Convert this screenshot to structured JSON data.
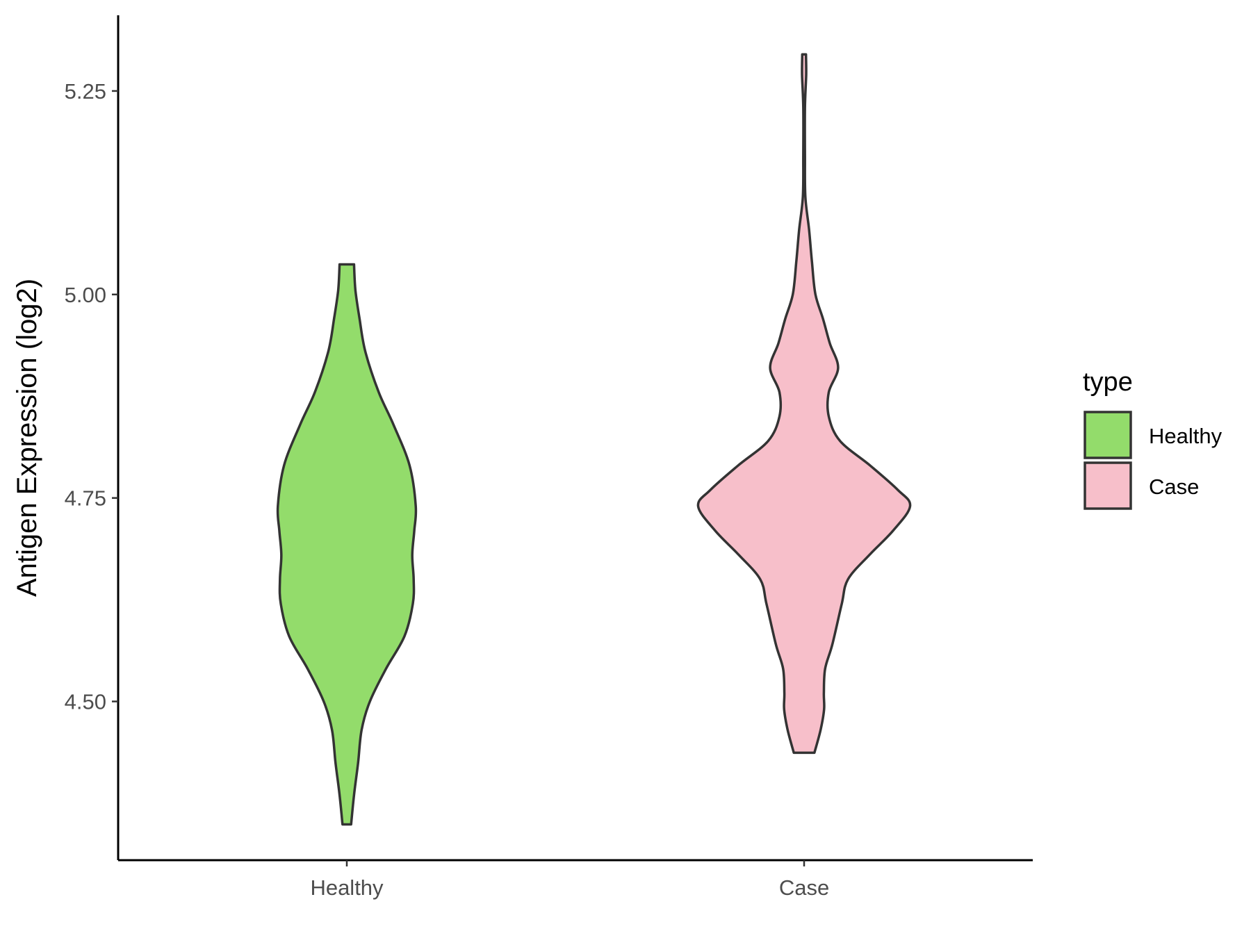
{
  "chart_data": {
    "type": "violin",
    "title": "",
    "xlabel": "",
    "ylabel": "Antigen Expression (log2)",
    "ylim": [
      4.305,
      5.343
    ],
    "yticks": [
      "4.50",
      "4.75",
      "5.00",
      "5.25"
    ],
    "grid": false,
    "categories": [
      "Healthy",
      "Case"
    ],
    "legend": {
      "title": "type",
      "position": "right",
      "entries": [
        "Healthy",
        "Case"
      ]
    },
    "colors": {
      "Healthy": "#93dc6b",
      "Case": "#f7bfca",
      "outline": "#333333"
    },
    "series": [
      {
        "name": "Healthy",
        "min": 4.349,
        "max": 5.037,
        "density_profile": [
          [
            4.349,
            0.021
          ],
          [
            4.385,
            0.035
          ],
          [
            4.425,
            0.055
          ],
          [
            4.465,
            0.072
          ],
          [
            4.5,
            0.112
          ],
          [
            4.54,
            0.19
          ],
          [
            4.58,
            0.28
          ],
          [
            4.62,
            0.321
          ],
          [
            4.65,
            0.325
          ],
          [
            4.68,
            0.318
          ],
          [
            4.71,
            0.328
          ],
          [
            4.74,
            0.335
          ],
          [
            4.79,
            0.305
          ],
          [
            4.84,
            0.227
          ],
          [
            4.88,
            0.155
          ],
          [
            4.93,
            0.09
          ],
          [
            4.97,
            0.062
          ],
          [
            5.005,
            0.042
          ],
          [
            5.037,
            0.035
          ]
        ]
      },
      {
        "name": "Case",
        "min": 4.437,
        "max": 5.295,
        "density_profile": [
          [
            4.437,
            0.05
          ],
          [
            4.465,
            0.08
          ],
          [
            4.49,
            0.097
          ],
          [
            4.51,
            0.096
          ],
          [
            4.54,
            0.102
          ],
          [
            4.57,
            0.137
          ],
          [
            4.62,
            0.183
          ],
          [
            4.65,
            0.213
          ],
          [
            4.68,
            0.317
          ],
          [
            4.71,
            0.433
          ],
          [
            4.74,
            0.515
          ],
          [
            4.76,
            0.455
          ],
          [
            4.79,
            0.32
          ],
          [
            4.82,
            0.175
          ],
          [
            4.85,
            0.12
          ],
          [
            4.88,
            0.12
          ],
          [
            4.91,
            0.165
          ],
          [
            4.94,
            0.125
          ],
          [
            4.97,
            0.092
          ],
          [
            5.0,
            0.055
          ],
          [
            5.04,
            0.038
          ],
          [
            5.08,
            0.024
          ],
          [
            5.12,
            0.006
          ],
          [
            5.17,
            0.004
          ],
          [
            5.23,
            0.004
          ],
          [
            5.27,
            0.01
          ],
          [
            5.295,
            0.009
          ]
        ]
      }
    ]
  }
}
